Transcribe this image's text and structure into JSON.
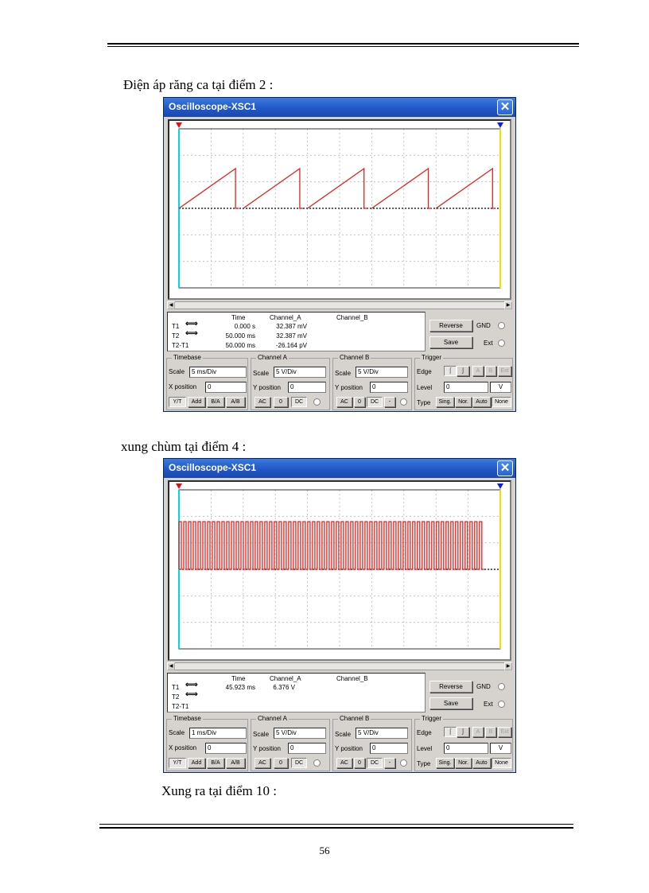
{
  "captions": {
    "c1": "Điện áp răng ca   tại điểm 2 :",
    "c2": "xung chùm tại điểm 4 :",
    "c3": "Xung ra tại điểm 10 :"
  },
  "page_number": "56",
  "common": {
    "window_title": "Oscilloscope-XSC1",
    "close_icon": "close-icon",
    "col_time": "Time",
    "col_channel_a": "Channel_A",
    "col_channel_b": "Channel_B",
    "t1": "T1",
    "t2": "T2",
    "t2t1": "T2-T1",
    "reverse": "Reverse",
    "save": "Save",
    "gnd": "GND",
    "ext": "Ext",
    "timebase": "Timebase",
    "channel_a_group": "Channel A",
    "channel_b_group": "Channel B",
    "trigger_group": "Trigger",
    "scale": "Scale",
    "x_position": "X position",
    "y_position": "Y position",
    "edge": "Edge",
    "level": "Level",
    "type": "Type",
    "yt": "Y/T",
    "add": "Add",
    "ba": "B/A",
    "ab": "A/B",
    "ac": "AC",
    "zero": "0",
    "dc": "DC",
    "minus": "-",
    "trig_a": "A",
    "trig_b": "B",
    "trig_ext": "Ext",
    "sing": "Sing.",
    "nor": "Nor.",
    "auto": "Auto",
    "none": "None",
    "level_unit": "V",
    "trace_color": "#e8201c",
    "cursor1_color": "#00d8e8",
    "cursor2_color": "#f0e000"
  },
  "scope1": {
    "t1_time": "0.000 s",
    "t1_cha": "32.387 mV",
    "t2_time": "50.000 ms",
    "t2_cha": "32.387 mV",
    "d_time": "50.000 ms",
    "d_cha": "-26.164 pV",
    "timebase_scale": "5 ms/Div",
    "x_pos": "0",
    "cha_scale": "5  V/Div",
    "cha_ypos": "0",
    "chb_scale": "5  V/Div",
    "chb_ypos": "0",
    "trig_level": "0"
  },
  "scope2": {
    "t1_time": "45.923 ms",
    "t1_cha": "6.376 V",
    "timebase_scale": "1 ms/Div",
    "x_pos": "0",
    "cha_scale": "5  V/Div",
    "cha_ypos": "0",
    "chb_scale": "5  V/Div",
    "chb_ypos": "0",
    "trig_level": "0"
  },
  "chart_data": [
    {
      "type": "line",
      "x_unit": "ms",
      "x_range": [
        0,
        50
      ],
      "y_unit": "V",
      "y_range": [
        -20,
        20
      ],
      "grid": true,
      "series": [
        {
          "shape": "sawtooth",
          "period_ms": 10,
          "min_v": 0,
          "max_v": 10,
          "cycles": 5
        }
      ]
    },
    {
      "type": "line",
      "x_unit": "ms",
      "x_range": [
        0,
        10
      ],
      "y_unit": "V",
      "y_range": [
        -20,
        20
      ],
      "grid": true,
      "series": [
        {
          "shape": "pulse-train",
          "low_v": 0,
          "high_v": 12,
          "pulses": 64,
          "burst_end_ms": 9.5
        }
      ]
    }
  ]
}
